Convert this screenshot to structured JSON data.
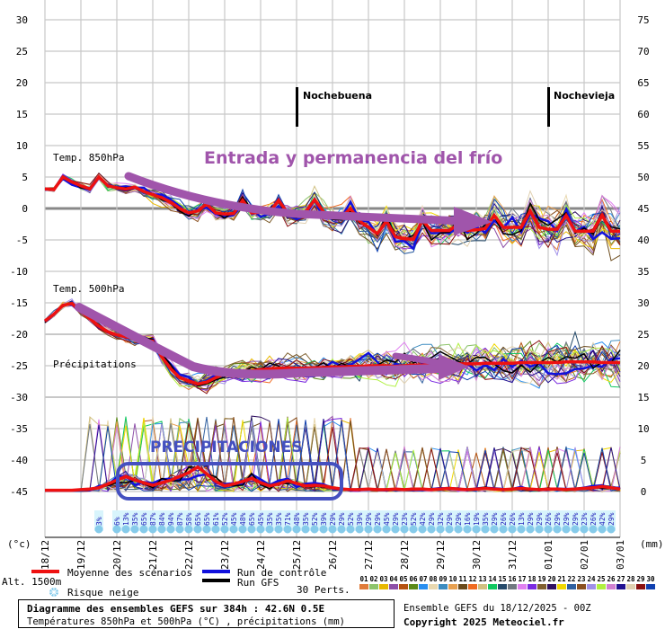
{
  "chart_data": {
    "type": "line",
    "title": "Diagramme des ensembles GEFS sur 384h : 42.6N 0.5E",
    "subtitle": "Températures 850hPa et 500hPa (°C) , précipitations (mm)",
    "run_info": "Ensemble GEFS du 18/12/2025 - 00Z",
    "copyright": "Copyright 2025 Meteociel.fr",
    "x_step_hours": 6,
    "x_labels": [
      "18/12",
      "19/12",
      "20/12",
      "21/12",
      "22/12",
      "23/12",
      "24/12",
      "25/12",
      "26/12",
      "27/12",
      "28/12",
      "29/12",
      "30/12",
      "31/12",
      "01/01",
      "02/01",
      "03/01"
    ],
    "left_axis": {
      "unit": "(°c)",
      "range": [
        -45,
        30
      ],
      "ticks": [
        "30",
        "25",
        "20",
        "15",
        "10",
        "5",
        "0",
        "-5",
        "-10",
        "-15",
        "-20",
        "-25",
        "-30",
        "-35",
        "-40",
        "-45"
      ]
    },
    "right_axis": {
      "unit": "(mm)",
      "range": [
        0,
        75
      ],
      "ticks": [
        "75",
        "70",
        "65",
        "60",
        "55",
        "50",
        "45",
        "40",
        "35",
        "30",
        "25",
        "20",
        "15",
        "10",
        "5",
        "0"
      ]
    },
    "altitude_label": "Alt. 1500m",
    "panel_labels": {
      "t850": "Temp. 850hPa",
      "t500": "Temp. 500hPa",
      "precip": "Précipitations"
    },
    "series": [
      {
        "name": "Moyenne T850",
        "color": "#ee1111",
        "values": [
          3.1,
          3.0,
          5.0,
          4.2,
          3.6,
          3.1,
          5.0,
          3.6,
          3.3,
          3.1,
          3.4,
          2.7,
          2.2,
          1.7,
          1.0,
          0.0,
          -0.7,
          -0.4,
          0.7,
          -0.7,
          -0.9,
          -0.8,
          1.3,
          -0.7,
          -0.6,
          -0.6,
          1.3,
          -0.7,
          -0.8,
          -0.6,
          1.4,
          -0.5,
          -1.5,
          -1.4,
          0.0,
          -2.0,
          -3.0,
          -4.0,
          -2.0,
          -4.5,
          -4.8,
          -4.9,
          -1.9,
          -3.5,
          -3.5,
          -3.5,
          -2.5,
          -3.5,
          -3.4,
          -3.2,
          -1.1,
          -3.0,
          -3.0,
          -3.0,
          -0.4,
          -3.0,
          -3.3,
          -3.3,
          -1.1,
          -3.6,
          -3.6,
          -3.6,
          -1.1,
          -3.6,
          -3.6
        ]
      },
      {
        "name": "Moyenne T500",
        "color": "#ee1111",
        "values": [
          -17.9,
          -16.8,
          -15.4,
          -15.1,
          -16.4,
          -17.5,
          -18.7,
          -19.6,
          -20.1,
          -20.4,
          -20.7,
          -20.9,
          -21.1,
          -23.6,
          -25.5,
          -26.9,
          -27.4,
          -27.9,
          -27.6,
          -26.9,
          -26.3,
          -25.9,
          -25.9,
          -25.8,
          -25.6,
          -25.5,
          -25.4,
          -25.4,
          -25.4,
          -25.4,
          -25.3,
          -25.3,
          -25.2,
          -25.2,
          -25.1,
          -25.1,
          -25.0,
          -25.0,
          -25.0,
          -25.1,
          -25.0,
          -24.9,
          -24.9,
          -24.8,
          -24.8,
          -24.8,
          -24.7,
          -24.7,
          -24.7,
          -24.6,
          -24.6,
          -24.6,
          -24.6,
          -24.5,
          -24.5,
          -24.5,
          -24.5,
          -24.5,
          -24.4,
          -24.4,
          -24.4,
          -24.4,
          -24.5,
          -24.5,
          -24.5
        ]
      },
      {
        "name": "Moyenne précipitations",
        "axis": "right",
        "color": "#ee1111",
        "values": [
          0.2,
          0.2,
          0.2,
          0.2,
          0.3,
          0.4,
          0.6,
          1.2,
          1.8,
          2.4,
          1.8,
          1.4,
          1.0,
          1.4,
          1.8,
          2.4,
          3.0,
          3.9,
          2.8,
          1.6,
          0.9,
          1.2,
          1.6,
          2.1,
          1.4,
          0.9,
          1.2,
          1.7,
          1.3,
          0.9,
          1.0,
          0.9,
          0.6,
          0.4,
          0.3,
          0.3,
          0.4,
          0.3,
          0.3,
          0.4,
          0.3,
          0.4,
          0.4,
          0.3,
          0.4,
          0.5,
          0.4,
          0.3,
          0.4,
          0.5,
          0.4,
          0.3,
          0.4,
          0.5,
          0.4,
          0.3,
          0.4,
          0.4,
          0.3,
          0.4,
          0.5,
          0.6,
          0.8,
          0.6,
          0.4
        ]
      }
    ],
    "members_spread": {
      "t850_start": 0.4,
      "t850_end": 4.0,
      "t500_start": 0.5,
      "t500_end": 4.5,
      "precip_max": 12
    },
    "legend": {
      "mean": "Moyenne des scénarios",
      "control": "Run de contrôle",
      "gfs": "Run GFS",
      "snow": "Risque neige",
      "perts_label": "30 Perts.",
      "colors": {
        "mean": "#ee1111",
        "control": "#1111dd",
        "gfs": "#000000"
      }
    },
    "perts": [
      {
        "label": "01",
        "color": "#e07b39"
      },
      {
        "label": "02",
        "color": "#8dc46b"
      },
      {
        "label": "03",
        "color": "#e8b800"
      },
      {
        "label": "04",
        "color": "#8e4fa8"
      },
      {
        "label": "05",
        "color": "#b5520f"
      },
      {
        "label": "06",
        "color": "#5a8a1a"
      },
      {
        "label": "07",
        "color": "#2a8ff0"
      },
      {
        "label": "08",
        "color": "#e8d8b0"
      },
      {
        "label": "09",
        "color": "#3d8cc0"
      },
      {
        "label": "10",
        "color": "#e8a050"
      },
      {
        "label": "11",
        "color": "#6b4a1a"
      },
      {
        "label": "12",
        "color": "#f06a20"
      },
      {
        "label": "13",
        "color": "#d0c080"
      },
      {
        "label": "14",
        "color": "#10c860"
      },
      {
        "label": "15",
        "color": "#254a6a"
      },
      {
        "label": "16",
        "color": "#707880"
      },
      {
        "label": "17",
        "color": "#e080f0"
      },
      {
        "label": "18",
        "color": "#7a2ae0"
      },
      {
        "label": "19",
        "color": "#806030"
      },
      {
        "label": "20",
        "color": "#301060"
      },
      {
        "label": "21",
        "color": "#f0d800"
      },
      {
        "label": "22",
        "color": "#3060a0"
      },
      {
        "label": "23",
        "color": "#8a5020"
      },
      {
        "label": "24",
        "color": "#a090e8"
      },
      {
        "label": "25",
        "color": "#b0f040"
      },
      {
        "label": "26",
        "color": "#d080d0"
      },
      {
        "label": "27",
        "color": "#201090"
      },
      {
        "label": "28",
        "color": "#e0d0b0"
      },
      {
        "label": "29",
        "color": "#8a1010"
      },
      {
        "label": "30",
        "color": "#1040b0"
      }
    ],
    "snow_risk": {
      "first": {
        "step": 6,
        "value": "3%"
      },
      "start_step": 8,
      "values": [
        "6%",
        "13%",
        "35%",
        "65%",
        "87%",
        "84%",
        "94%",
        "87%",
        "58%",
        "65%",
        "65%",
        "61%",
        "52%",
        "45%",
        "48%",
        "65%",
        "45%",
        "35%",
        "35%",
        "71%",
        "48%",
        "35%",
        "52%",
        "39%",
        "29%",
        "29%",
        "52%",
        "39%",
        "29%",
        "29%",
        "45%",
        "29%",
        "23%",
        "52%",
        "42%",
        "29%",
        "32%",
        "29%",
        "29%",
        "16%",
        "19%",
        "35%",
        "29%",
        "26%",
        "26%",
        "13%",
        "29%",
        "29%",
        "26%",
        "29%",
        "29%",
        "29%",
        "23%",
        "26%",
        "42%",
        "29%"
      ]
    },
    "events": [
      {
        "label": "Nochebuena",
        "date": "25/12"
      },
      {
        "label": "Nochevieja",
        "date": "01/01"
      }
    ],
    "annotations": {
      "cold": "Entrada y permanencia del frío",
      "precip": "PRECIPITACIONES",
      "cold_color": "#a055ab",
      "precip_color": "#4450c0"
    }
  }
}
